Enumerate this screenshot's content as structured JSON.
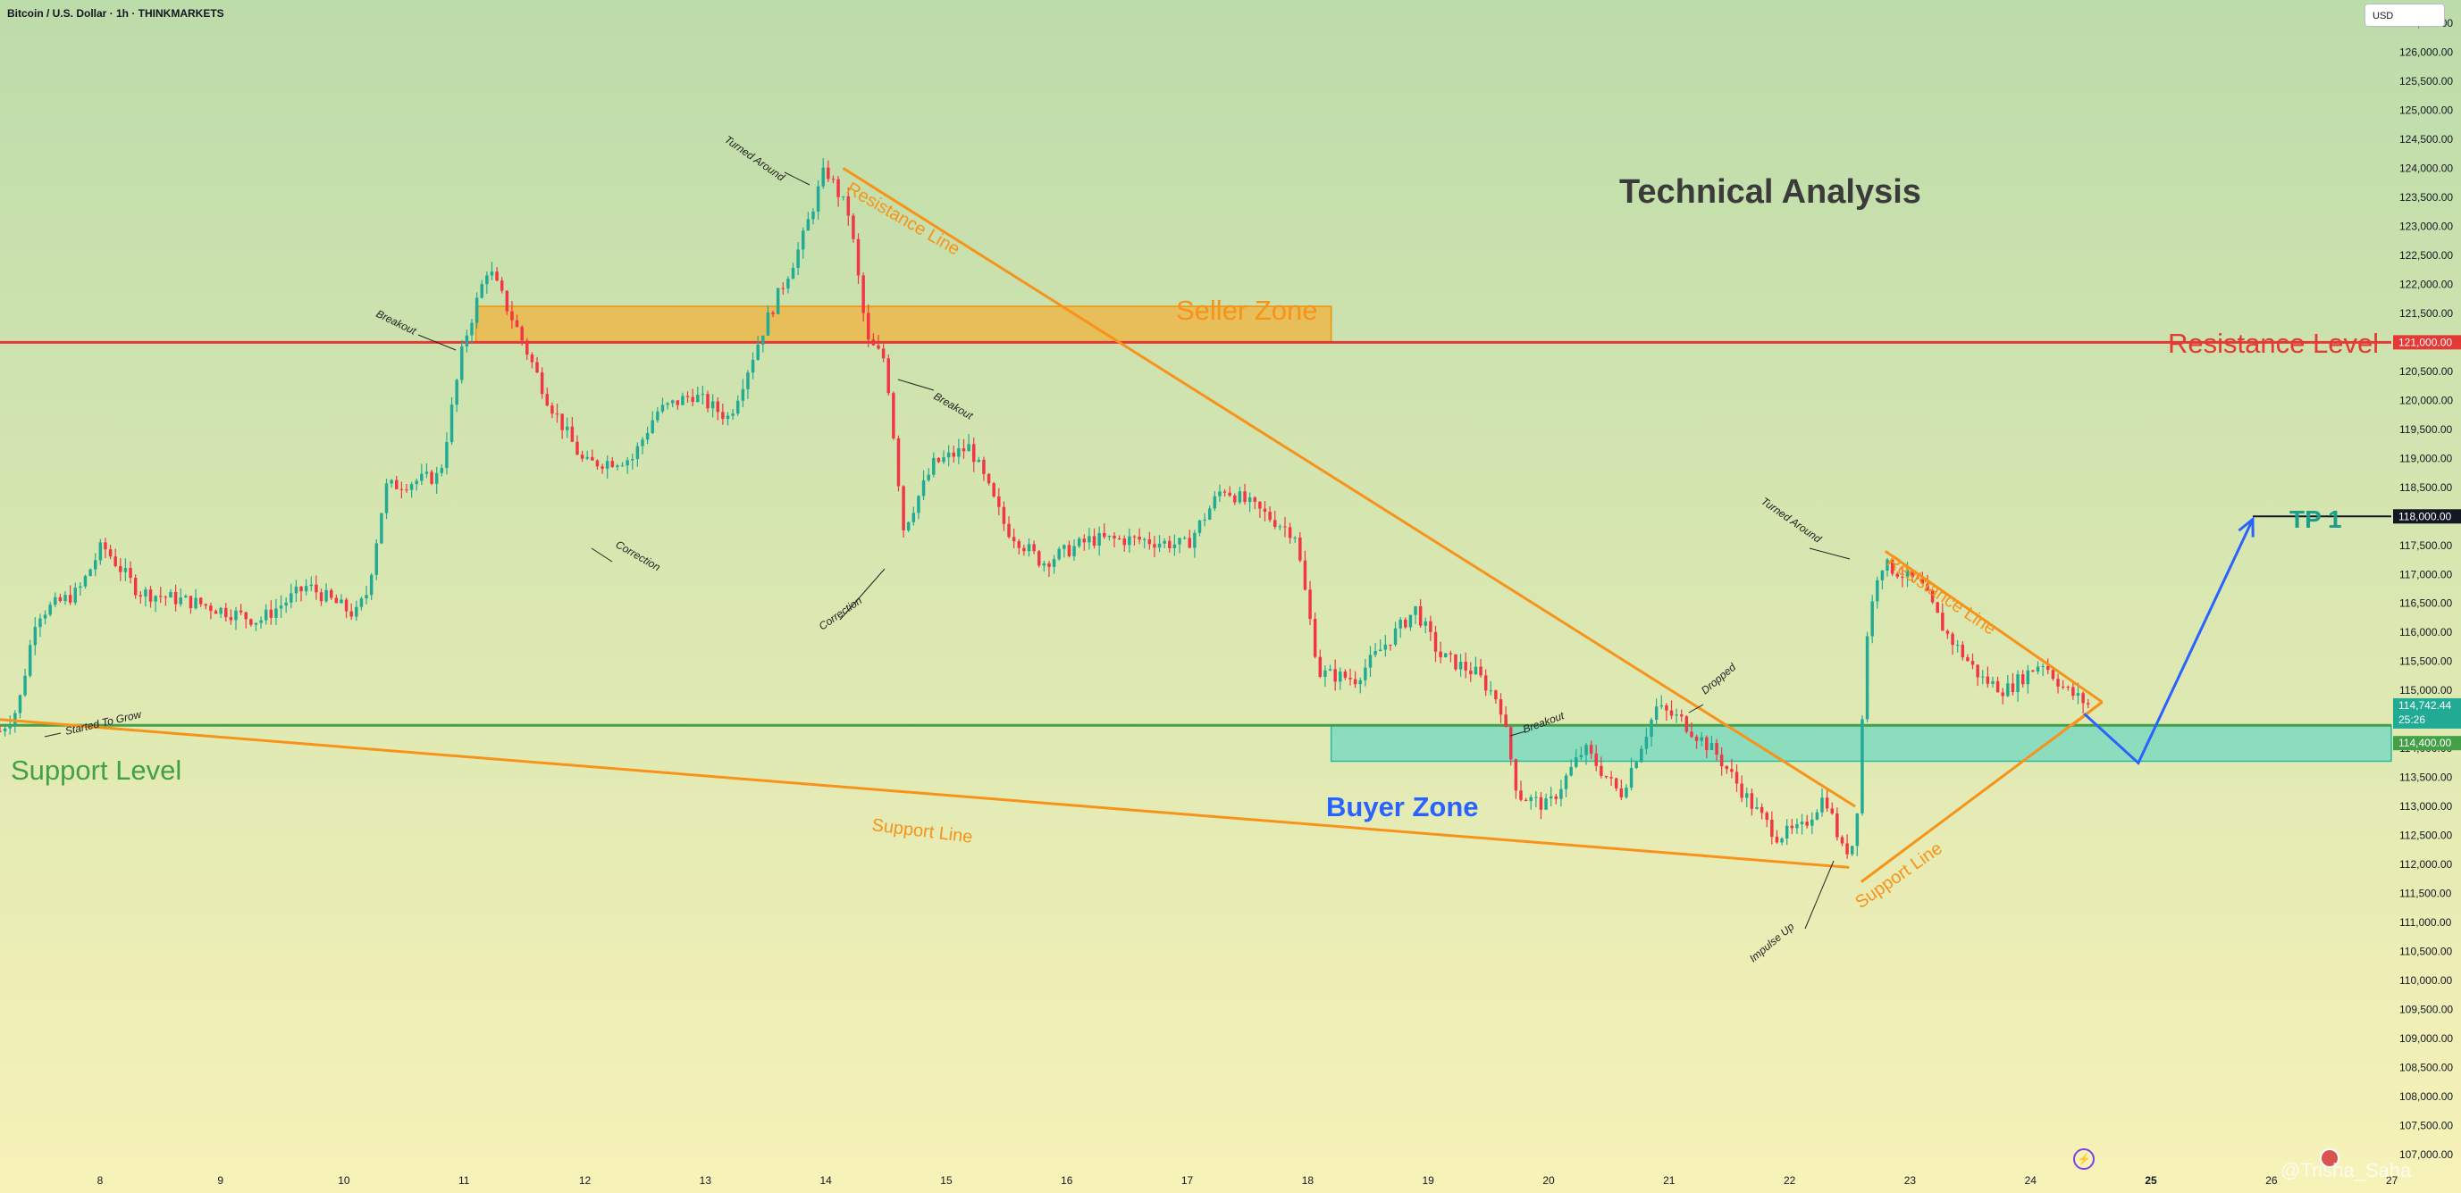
{
  "header": {
    "symbol": "Bitcoin / U.S. Dollar · 1h · THINKMARKETS",
    "currency_button": "USD"
  },
  "annotations": {
    "title": "Technical Analysis",
    "seller_zone": "Seller Zone",
    "buyer_zone": "Buyer Zone",
    "resistance_level": "Resistance Level",
    "support_level": "Support Level",
    "tp1": "TP 1",
    "resistance_line_1": "Resistance Line",
    "resistance_line_2": "Resistance Line",
    "support_line_1": "Support Line",
    "support_line_2": "Support Line",
    "notes": [
      "Turned Around",
      "Breakout",
      "Correction",
      "Breakout",
      "Correction",
      "Started To Grow",
      "Breakout",
      "Dropped",
      "Turned Around",
      "Impulse Up"
    ]
  },
  "price_labels": {
    "resistance": "121,000.00",
    "tp": "118,000.00",
    "current": "114,742.44",
    "countdown": "25:26",
    "support": "114,400.00"
  },
  "watermark": "@Trisha_Saha",
  "colors": {
    "bg_top": "#bcdcaa",
    "bg_bottom": "#f7f2b8",
    "up": "#22ab94",
    "down": "#f23645",
    "orange": "#f7931a",
    "resistance": "#e53935",
    "support": "#43a047",
    "buyer_zone": "#5ed6c4",
    "seller_zone": "#f0b23c",
    "projection": "#2962ff"
  },
  "chart_data": {
    "type": "candlestick",
    "title": "Bitcoin / U.S. Dollar · 1h · THINKMARKETS",
    "x_ticks": [
      "8",
      "9",
      "10",
      "11",
      "12",
      "13",
      "14",
      "15",
      "16",
      "17",
      "18",
      "19",
      "20",
      "21",
      "22",
      "23",
      "24",
      "25",
      "26",
      "27"
    ],
    "y_ticks": [
      "126,500.00",
      "126,000.00",
      "125,500.00",
      "125,000.00",
      "124,500.00",
      "124,000.00",
      "123,500.00",
      "123,000.00",
      "122,500.00",
      "122,000.00",
      "121,500.00",
      "121,000.00",
      "120,500.00",
      "120,000.00",
      "119,500.00",
      "119,000.00",
      "118,500.00",
      "118,000.00",
      "117,500.00",
      "117,000.00",
      "116,500.00",
      "116,000.00",
      "115,500.00",
      "115,000.00",
      "114,500.00",
      "114,000.00",
      "113,500.00",
      "113,000.00",
      "112,500.00",
      "112,000.00",
      "111,500.00",
      "111,000.00",
      "110,500.00",
      "110,000.00",
      "109,500.00",
      "109,000.00",
      "108,500.00",
      "108,000.00",
      "107,500.00",
      "107,000.00"
    ],
    "ylim": [
      106800,
      126900
    ],
    "xlim": [
      7.15,
      27.0
    ],
    "levels": {
      "resistance": 121000,
      "support": 114400,
      "tp1": 118000
    },
    "zones": {
      "seller": {
        "x": [
          11.1,
          18.2
        ],
        "y": [
          121000,
          121620
        ]
      },
      "buyer": {
        "x": [
          18.2,
          27.0
        ],
        "y": [
          113780,
          114400
        ]
      }
    },
    "trendlines": [
      {
        "name": "Resistance Line",
        "points": [
          [
            14.15,
            124000
          ],
          [
            22.55,
            113000
          ]
        ]
      },
      {
        "name": "Support Line",
        "points": [
          [
            7.15,
            114500
          ],
          [
            22.5,
            111950
          ]
        ]
      },
      {
        "name": "Resistance Line",
        "points": [
          [
            22.8,
            117400
          ],
          [
            24.6,
            114800
          ]
        ]
      },
      {
        "name": "Support Line",
        "points": [
          [
            22.6,
            111700
          ],
          [
            24.6,
            114800
          ]
        ]
      }
    ],
    "projection": [
      [
        24.45,
        114600
      ],
      [
        24.9,
        113750
      ],
      [
        25.85,
        117950
      ]
    ],
    "anchors": [
      [
        7.15,
        114300
      ],
      [
        7.3,
        114700
      ],
      [
        7.45,
        116300
      ],
      [
        7.8,
        116700
      ],
      [
        8.0,
        117500
      ],
      [
        8.3,
        116700
      ],
      [
        8.8,
        116500
      ],
      [
        9.3,
        116200
      ],
      [
        9.7,
        116800
      ],
      [
        10.1,
        116300
      ],
      [
        10.2,
        116700
      ],
      [
        10.35,
        118500
      ],
      [
        10.8,
        118700
      ],
      [
        11.0,
        121000
      ],
      [
        11.2,
        122300
      ],
      [
        11.45,
        121200
      ],
      [
        11.7,
        120000
      ],
      [
        12.0,
        118900
      ],
      [
        12.4,
        119000
      ],
      [
        12.6,
        119800
      ],
      [
        12.9,
        120100
      ],
      [
        13.2,
        119700
      ],
      [
        13.5,
        121300
      ],
      [
        13.8,
        122700
      ],
      [
        14.0,
        124000
      ],
      [
        14.2,
        123200
      ],
      [
        14.35,
        121000
      ],
      [
        14.5,
        120700
      ],
      [
        14.65,
        117800
      ],
      [
        14.9,
        118900
      ],
      [
        15.2,
        119200
      ],
      [
        15.5,
        117800
      ],
      [
        15.8,
        117200
      ],
      [
        16.2,
        117600
      ],
      [
        16.6,
        117600
      ],
      [
        17.0,
        117500
      ],
      [
        17.3,
        118500
      ],
      [
        17.6,
        118100
      ],
      [
        17.9,
        117700
      ],
      [
        18.1,
        115300
      ],
      [
        18.4,
        115200
      ],
      [
        18.9,
        116400
      ],
      [
        19.1,
        115600
      ],
      [
        19.4,
        115300
      ],
      [
        19.6,
        114800
      ],
      [
        19.75,
        113200
      ],
      [
        20.0,
        113000
      ],
      [
        20.3,
        114000
      ],
      [
        20.6,
        113200
      ],
      [
        20.9,
        114700
      ],
      [
        21.1,
        114500
      ],
      [
        21.4,
        113900
      ],
      [
        21.7,
        113000
      ],
      [
        21.9,
        112500
      ],
      [
        22.1,
        112600
      ],
      [
        22.3,
        113200
      ],
      [
        22.45,
        112200
      ],
      [
        22.55,
        112400
      ],
      [
        22.65,
        116000
      ],
      [
        22.75,
        117200
      ],
      [
        22.95,
        117000
      ],
      [
        23.1,
        116800
      ],
      [
        23.3,
        116000
      ],
      [
        23.6,
        115200
      ],
      [
        23.8,
        115000
      ],
      [
        24.1,
        115500
      ],
      [
        24.3,
        115000
      ],
      [
        24.5,
        114742
      ]
    ]
  }
}
